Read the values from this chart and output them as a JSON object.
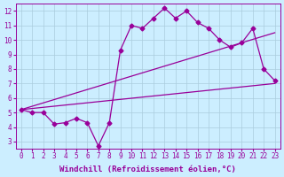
{
  "background_color": "#cceeff",
  "grid_color": "#aaccdd",
  "line_color": "#990099",
  "marker": "D",
  "markersize": 2.5,
  "linewidth": 0.9,
  "xlabel": "Windchill (Refroidissement éolien,°C)",
  "xlabel_fontsize": 6.5,
  "tick_fontsize": 5.5,
  "xlim": [
    -0.5,
    23.5
  ],
  "ylim": [
    2.5,
    12.5
  ],
  "yticks": [
    3,
    4,
    5,
    6,
    7,
    8,
    9,
    10,
    11,
    12
  ],
  "xticks": [
    0,
    1,
    2,
    3,
    4,
    5,
    6,
    7,
    8,
    9,
    10,
    11,
    12,
    13,
    14,
    15,
    16,
    17,
    18,
    19,
    20,
    21,
    22,
    23
  ],
  "series1_x": [
    0,
    1,
    2,
    3,
    4,
    5,
    6,
    7,
    8,
    9,
    10,
    11,
    12,
    13,
    14,
    15,
    16,
    17,
    18,
    19,
    20,
    21,
    22,
    23
  ],
  "series1_y": [
    5.2,
    5.0,
    5.0,
    4.2,
    4.3,
    4.6,
    4.3,
    2.7,
    4.3,
    9.3,
    11.0,
    10.8,
    11.5,
    12.2,
    11.5,
    12.0,
    11.2,
    10.8,
    10.0,
    9.5,
    9.8,
    10.8,
    8.0,
    7.2
  ],
  "series2_x": [
    0,
    23
  ],
  "series2_y": [
    5.2,
    10.5
  ],
  "series3_x": [
    0,
    23
  ],
  "series3_y": [
    5.2,
    7.0
  ]
}
